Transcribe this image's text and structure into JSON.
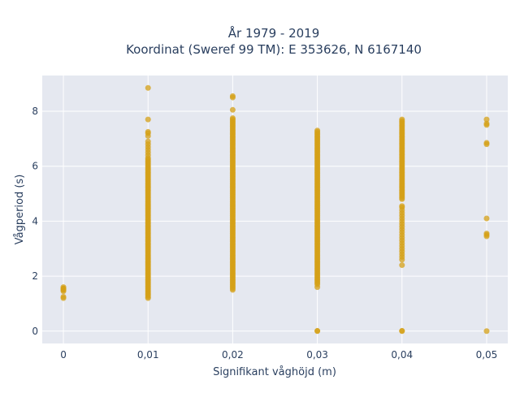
{
  "chart_data": {
    "type": "scatter",
    "title": "År 1979 - 2019",
    "subtitle": "Koordinat (Sweref 99 TM): E 353626, N 6167140",
    "xlabel": "Signifikant våghöjd (m)",
    "ylabel": "Vågperiod (s)",
    "xlim": [
      -0.0025,
      0.0525
    ],
    "ylim": [
      -0.45,
      9.3
    ],
    "x_ticks": [
      0,
      0.01,
      0.02,
      0.03,
      0.04,
      0.05
    ],
    "x_tick_labels": [
      "0",
      "0,01",
      "0,02",
      "0,03",
      "0,04",
      "0,05"
    ],
    "y_ticks": [
      0,
      2,
      4,
      6,
      8
    ],
    "y_tick_labels": [
      "0",
      "2",
      "4",
      "6",
      "8"
    ],
    "grid": true,
    "marker_color": "#d4a017",
    "plot_background": "#e5e8f0",
    "series": [
      {
        "columns": [
          {
            "x": 0.0,
            "y_range": [
              1.45,
              1.6
            ],
            "extra_y": [
              1.2,
              1.25,
              1.5,
              1.55
            ]
          },
          {
            "x": 0.01,
            "y_range": [
              1.2,
              6.3
            ],
            "extra_y": [
              6.4,
              6.5,
              6.6,
              6.7,
              6.8,
              6.9,
              7.1,
              7.2,
              7.25,
              7.7,
              8.85
            ]
          },
          {
            "x": 0.02,
            "y_range": [
              1.5,
              7.75
            ],
            "extra_y": [
              8.05,
              8.5,
              8.55
            ]
          },
          {
            "x": 0.03,
            "y_range": [
              1.7,
              7.3
            ],
            "extra_y": [
              1.6,
              0.0,
              0.01
            ]
          },
          {
            "x": 0.04,
            "y_range": [
              4.8,
              7.7
            ],
            "extra_y": [
              4.55,
              4.5,
              4.4,
              4.3,
              4.2,
              4.1,
              4.0,
              3.9,
              3.8,
              3.7,
              3.6,
              3.5,
              3.4,
              3.3,
              3.2,
              3.1,
              3.0,
              2.9,
              2.8,
              2.7,
              2.6,
              2.4,
              0.0,
              0.01
            ]
          },
          {
            "x": 0.05,
            "y_range": null,
            "extra_y": [
              7.7,
              7.55,
              7.5,
              6.85,
              6.8,
              4.1,
              3.55,
              3.5,
              3.45,
              0.0
            ]
          }
        ]
      }
    ]
  }
}
